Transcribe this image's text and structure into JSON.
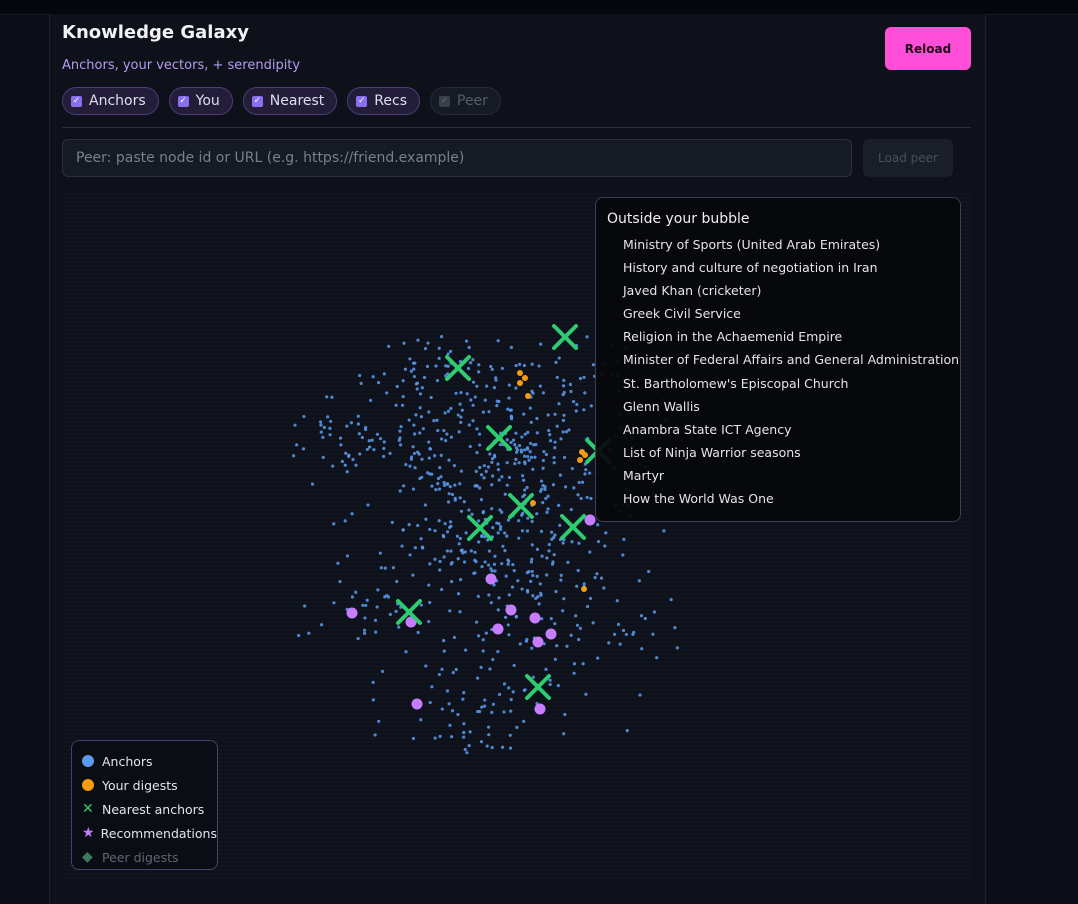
{
  "header": {
    "title": "Knowledge Galaxy",
    "subtitle": "Anchors, your vectors, + serendipity",
    "reload_label": "Reload"
  },
  "toggles": [
    {
      "label": "Anchors",
      "checked": true,
      "enabled": true
    },
    {
      "label": "You",
      "checked": true,
      "enabled": true
    },
    {
      "label": "Nearest",
      "checked": true,
      "enabled": true
    },
    {
      "label": "Recs",
      "checked": true,
      "enabled": true
    },
    {
      "label": "Peer",
      "checked": true,
      "enabled": false
    }
  ],
  "peer": {
    "placeholder": "Peer: paste node id or URL (e.g. https://friend.example)",
    "load_label": "Load peer"
  },
  "bubble": {
    "heading": "Outside your bubble",
    "items": [
      "Ministry of Sports (United Arab Emirates)",
      "History and culture of negotiation in Iran",
      "Javed Khan (cricketer)",
      "Greek Civil Service",
      "Religion in the Achaemenid Empire",
      "Minister of Federal Affairs and General Administration",
      "St. Bartholomew's Episcopal Church",
      "Glenn Wallis",
      "Anambra State ICT Agency",
      "List of Ninja Warrior seasons",
      "Martyr",
      "How the World Was One"
    ]
  },
  "legend": [
    {
      "label": "Anchors",
      "icon": "circle",
      "color": "#5b9cf0"
    },
    {
      "label": "Your digests",
      "icon": "circle",
      "color": "#f39c12"
    },
    {
      "label": "Nearest anchors",
      "icon": "cross",
      "color": "#2ecc71"
    },
    {
      "label": "Recommendations",
      "icon": "star",
      "color": "#c77dff"
    },
    {
      "label": "Peer digests",
      "icon": "diamond",
      "color": "#3c7a5e"
    }
  ],
  "colors": {
    "anchors": "#5b9cf0",
    "digests": "#f39c12",
    "nearest": "#2ecc71",
    "recs": "#c77dff",
    "accent": "#ff4fd8"
  }
}
